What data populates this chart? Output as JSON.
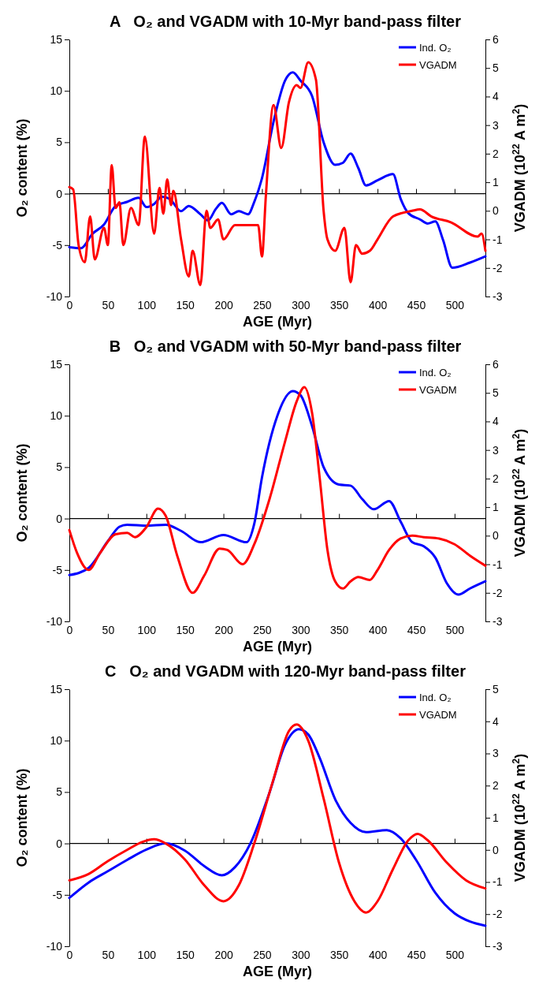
{
  "chart_data": [
    {
      "type": "line",
      "title": "A   O₂ and VGADM with 10-Myr band-pass filter",
      "xlabel": "AGE (Myr)",
      "ylabel": "O₂ content (%)",
      "y2label": "VGADM (10$^{22}$ A m$^{2}$)",
      "xlim": [
        0,
        540
      ],
      "xticks": [
        0,
        50,
        100,
        150,
        200,
        250,
        300,
        350,
        400,
        450,
        500
      ],
      "ylim": [
        -10,
        15
      ],
      "yticks": [
        -10,
        -5,
        0,
        5,
        10,
        15
      ],
      "y2lim": [
        -3,
        6
      ],
      "y2ticks": [
        -3,
        -2,
        -1,
        0,
        1,
        2,
        3,
        4,
        5,
        6
      ],
      "ref_lines": [
        {
          "axis": "y",
          "value": 0,
          "color": "#000000"
        }
      ],
      "legend": "top right",
      "marker": "none",
      "line_style": "solid",
      "series": [
        {
          "name": "Ind. O₂",
          "color": "#0000ff",
          "x": [
            0,
            15,
            30,
            45,
            60,
            75,
            90,
            100,
            110,
            120,
            130,
            145,
            155,
            170,
            180,
            190,
            198,
            210,
            220,
            232,
            240,
            250,
            265,
            280,
            290,
            300,
            315,
            330,
            345,
            355,
            365,
            375,
            385,
            400,
            420,
            430,
            440,
            455,
            465,
            475,
            485,
            497,
            520,
            540
          ],
          "values": [
            -5.2,
            -5.3,
            -3.9,
            -3.0,
            -1.2,
            -0.8,
            -0.4,
            -1.3,
            -1.0,
            -0.3,
            -0.5,
            -1.7,
            -1.2,
            -2.0,
            -2.6,
            -1.5,
            -0.9,
            -2.0,
            -1.7,
            -2.0,
            -0.8,
            1.5,
            7,
            11,
            11.8,
            11,
            9.5,
            5,
            2.8,
            3,
            3.9,
            2.5,
            0.8,
            1.3,
            1.9,
            -0.5,
            -1.9,
            -2.5,
            -2.9,
            -2.7,
            -4.5,
            -7.2,
            -6.7,
            -6.1
          ]
        },
        {
          "name": "VGADM",
          "color": "#ff0000",
          "axis": "y2",
          "x": [
            0,
            5,
            12,
            20,
            27,
            33,
            45,
            50,
            55,
            60,
            65,
            70,
            80,
            90,
            98,
            110,
            117,
            122,
            127,
            132,
            135,
            145,
            155,
            160,
            170,
            178,
            183,
            193,
            200,
            215,
            232,
            245,
            250,
            255,
            265,
            275,
            285,
            295,
            300,
            310,
            320,
            330,
            335,
            345,
            357,
            365,
            372,
            380,
            390,
            400,
            420,
            445,
            455,
            470,
            495,
            530,
            535,
            540
          ],
          "values": [
            0.83,
            0.75,
            -1.2,
            -1.8,
            -0.2,
            -1.7,
            -0.6,
            -1.2,
            1.6,
            0.1,
            0.3,
            -1.2,
            0.1,
            -0.5,
            2.6,
            -0.8,
            0.8,
            -0.1,
            1.1,
            0.2,
            0.7,
            -1.0,
            -2.3,
            -1.4,
            -2.6,
            0,
            -0.6,
            -0.3,
            -1.0,
            -0.5,
            -0.5,
            -0.5,
            -1.6,
            0.5,
            3.7,
            2.2,
            3.8,
            4.4,
            4.3,
            5.2,
            4.6,
            0,
            -1.0,
            -1.4,
            -0.6,
            -2.5,
            -1.2,
            -1.5,
            -1.4,
            -1.0,
            -0.2,
            0,
            0.05,
            -0.2,
            -0.4,
            -0.9,
            -0.8,
            -1.4
          ]
        }
      ]
    },
    {
      "type": "line",
      "title": "B   O₂ and VGADM with 50-Myr band-pass filter",
      "xlabel": "AGE (Myr)",
      "ylabel": "O₂ content (%)",
      "y2label": "VGADM (10$^{22}$ A m$^{2}$)",
      "xlim": [
        0,
        540
      ],
      "xticks": [
        0,
        50,
        100,
        150,
        200,
        250,
        300,
        350,
        400,
        450,
        500
      ],
      "ylim": [
        -10,
        15
      ],
      "yticks": [
        -10,
        -5,
        0,
        5,
        10,
        15
      ],
      "y2lim": [
        -3,
        6
      ],
      "y2ticks": [
        -3,
        -2,
        -1,
        0,
        1,
        2,
        3,
        4,
        5,
        6
      ],
      "ref_lines": [
        {
          "axis": "y",
          "value": 0,
          "color": "#000000"
        }
      ],
      "legend": "top right",
      "marker": "none",
      "line_style": "solid",
      "series": [
        {
          "name": "Ind. O₂",
          "color": "#0000ff",
          "x": [
            0,
            25,
            50,
            65,
            75,
            100,
            125,
            145,
            170,
            200,
            230,
            240,
            250,
            270,
            290,
            300,
            315,
            330,
            350,
            365,
            380,
            395,
            415,
            430,
            445,
            460,
            475,
            490,
            505,
            520,
            540
          ],
          "values": [
            -5.5,
            -4.8,
            -2.2,
            -0.8,
            -0.6,
            -0.7,
            -0.6,
            -1.2,
            -2.3,
            -1.6,
            -2.3,
            -0.5,
            4,
            10,
            12.4,
            12,
            9,
            5,
            3.3,
            3.2,
            1.9,
            0.9,
            1.7,
            -0.3,
            -2.3,
            -2.7,
            -3.8,
            -6.3,
            -7.4,
            -6.8,
            -6.1
          ]
        },
        {
          "name": "VGADM",
          "color": "#ff0000",
          "axis": "y2",
          "x": [
            0,
            10,
            25,
            40,
            60,
            75,
            85,
            100,
            115,
            125,
            140,
            160,
            175,
            195,
            205,
            225,
            240,
            260,
            280,
            295,
            305,
            315,
            325,
            335,
            345,
            355,
            365,
            375,
            390,
            400,
            415,
            430,
            445,
            460,
            480,
            500,
            520,
            540
          ],
          "values": [
            0.2,
            -0.6,
            -1.2,
            -0.6,
            0.05,
            0.1,
            -0.05,
            0.3,
            0.95,
            0.7,
            -0.7,
            -2.0,
            -1.4,
            -0.45,
            -0.5,
            -1.0,
            -0.3,
            1.3,
            3.3,
            4.7,
            5.2,
            4.3,
            2,
            -0.5,
            -1.6,
            -1.85,
            -1.6,
            -1.45,
            -1.55,
            -1.2,
            -0.5,
            -0.1,
            0.0,
            -0.05,
            -0.1,
            -0.3,
            -0.7,
            -1.05
          ]
        }
      ]
    },
    {
      "type": "line",
      "title": "C   O₂ and VGADM with 120-Myr band-pass filter",
      "xlabel": "AGE (Myr)",
      "ylabel": "O₂ content (%)",
      "y2label": "VGADM (10$^{22}$ A m$^{2}$)",
      "xlim": [
        0,
        540
      ],
      "xticks": [
        0,
        50,
        100,
        150,
        200,
        250,
        300,
        350,
        400,
        450,
        500
      ],
      "ylim": [
        -10,
        15
      ],
      "yticks": [
        -10,
        -5,
        0,
        5,
        10,
        15
      ],
      "y2lim": [
        -3,
        5
      ],
      "y2ticks": [
        -3,
        -2,
        -1,
        0,
        1,
        2,
        3,
        4,
        5
      ],
      "ref_lines": [
        {
          "axis": "y",
          "value": 0,
          "color": "#000000"
        }
      ],
      "legend": "top right",
      "marker": "none",
      "line_style": "solid",
      "series": [
        {
          "name": "Ind. O₂",
          "color": "#0000ff",
          "x": [
            0,
            25,
            50,
            75,
            100,
            125,
            150,
            175,
            198,
            215,
            235,
            260,
            280,
            298,
            310,
            325,
            345,
            365,
            385,
            412,
            430,
            450,
            475,
            500,
            520,
            540
          ],
          "values": [
            -5.3,
            -3.8,
            -2.7,
            -1.6,
            -0.6,
            0,
            -0.7,
            -2.2,
            -3.1,
            -2.3,
            0,
            5,
            9.6,
            11.1,
            10.6,
            8.3,
            4.3,
            2,
            1.1,
            1.3,
            0.5,
            -1.6,
            -4.8,
            -6.8,
            -7.6,
            -8.0
          ]
        },
        {
          "name": "VGADM",
          "color": "#ff0000",
          "axis": "y2",
          "x": [
            0,
            25,
            50,
            75,
            95,
            110,
            125,
            150,
            175,
            200,
            220,
            240,
            265,
            285,
            295,
            310,
            330,
            350,
            370,
            385,
            400,
            420,
            440,
            452,
            465,
            490,
            515,
            540
          ],
          "values": [
            -0.95,
            -0.75,
            -0.35,
            0,
            0.25,
            0.33,
            0.2,
            -0.3,
            -1.1,
            -1.6,
            -1.1,
            0.2,
            2.2,
            3.7,
            3.9,
            3.4,
            1.6,
            -0.4,
            -1.6,
            -1.95,
            -1.6,
            -0.6,
            0.3,
            0.5,
            0.3,
            -0.4,
            -0.95,
            -1.2
          ]
        }
      ]
    }
  ]
}
